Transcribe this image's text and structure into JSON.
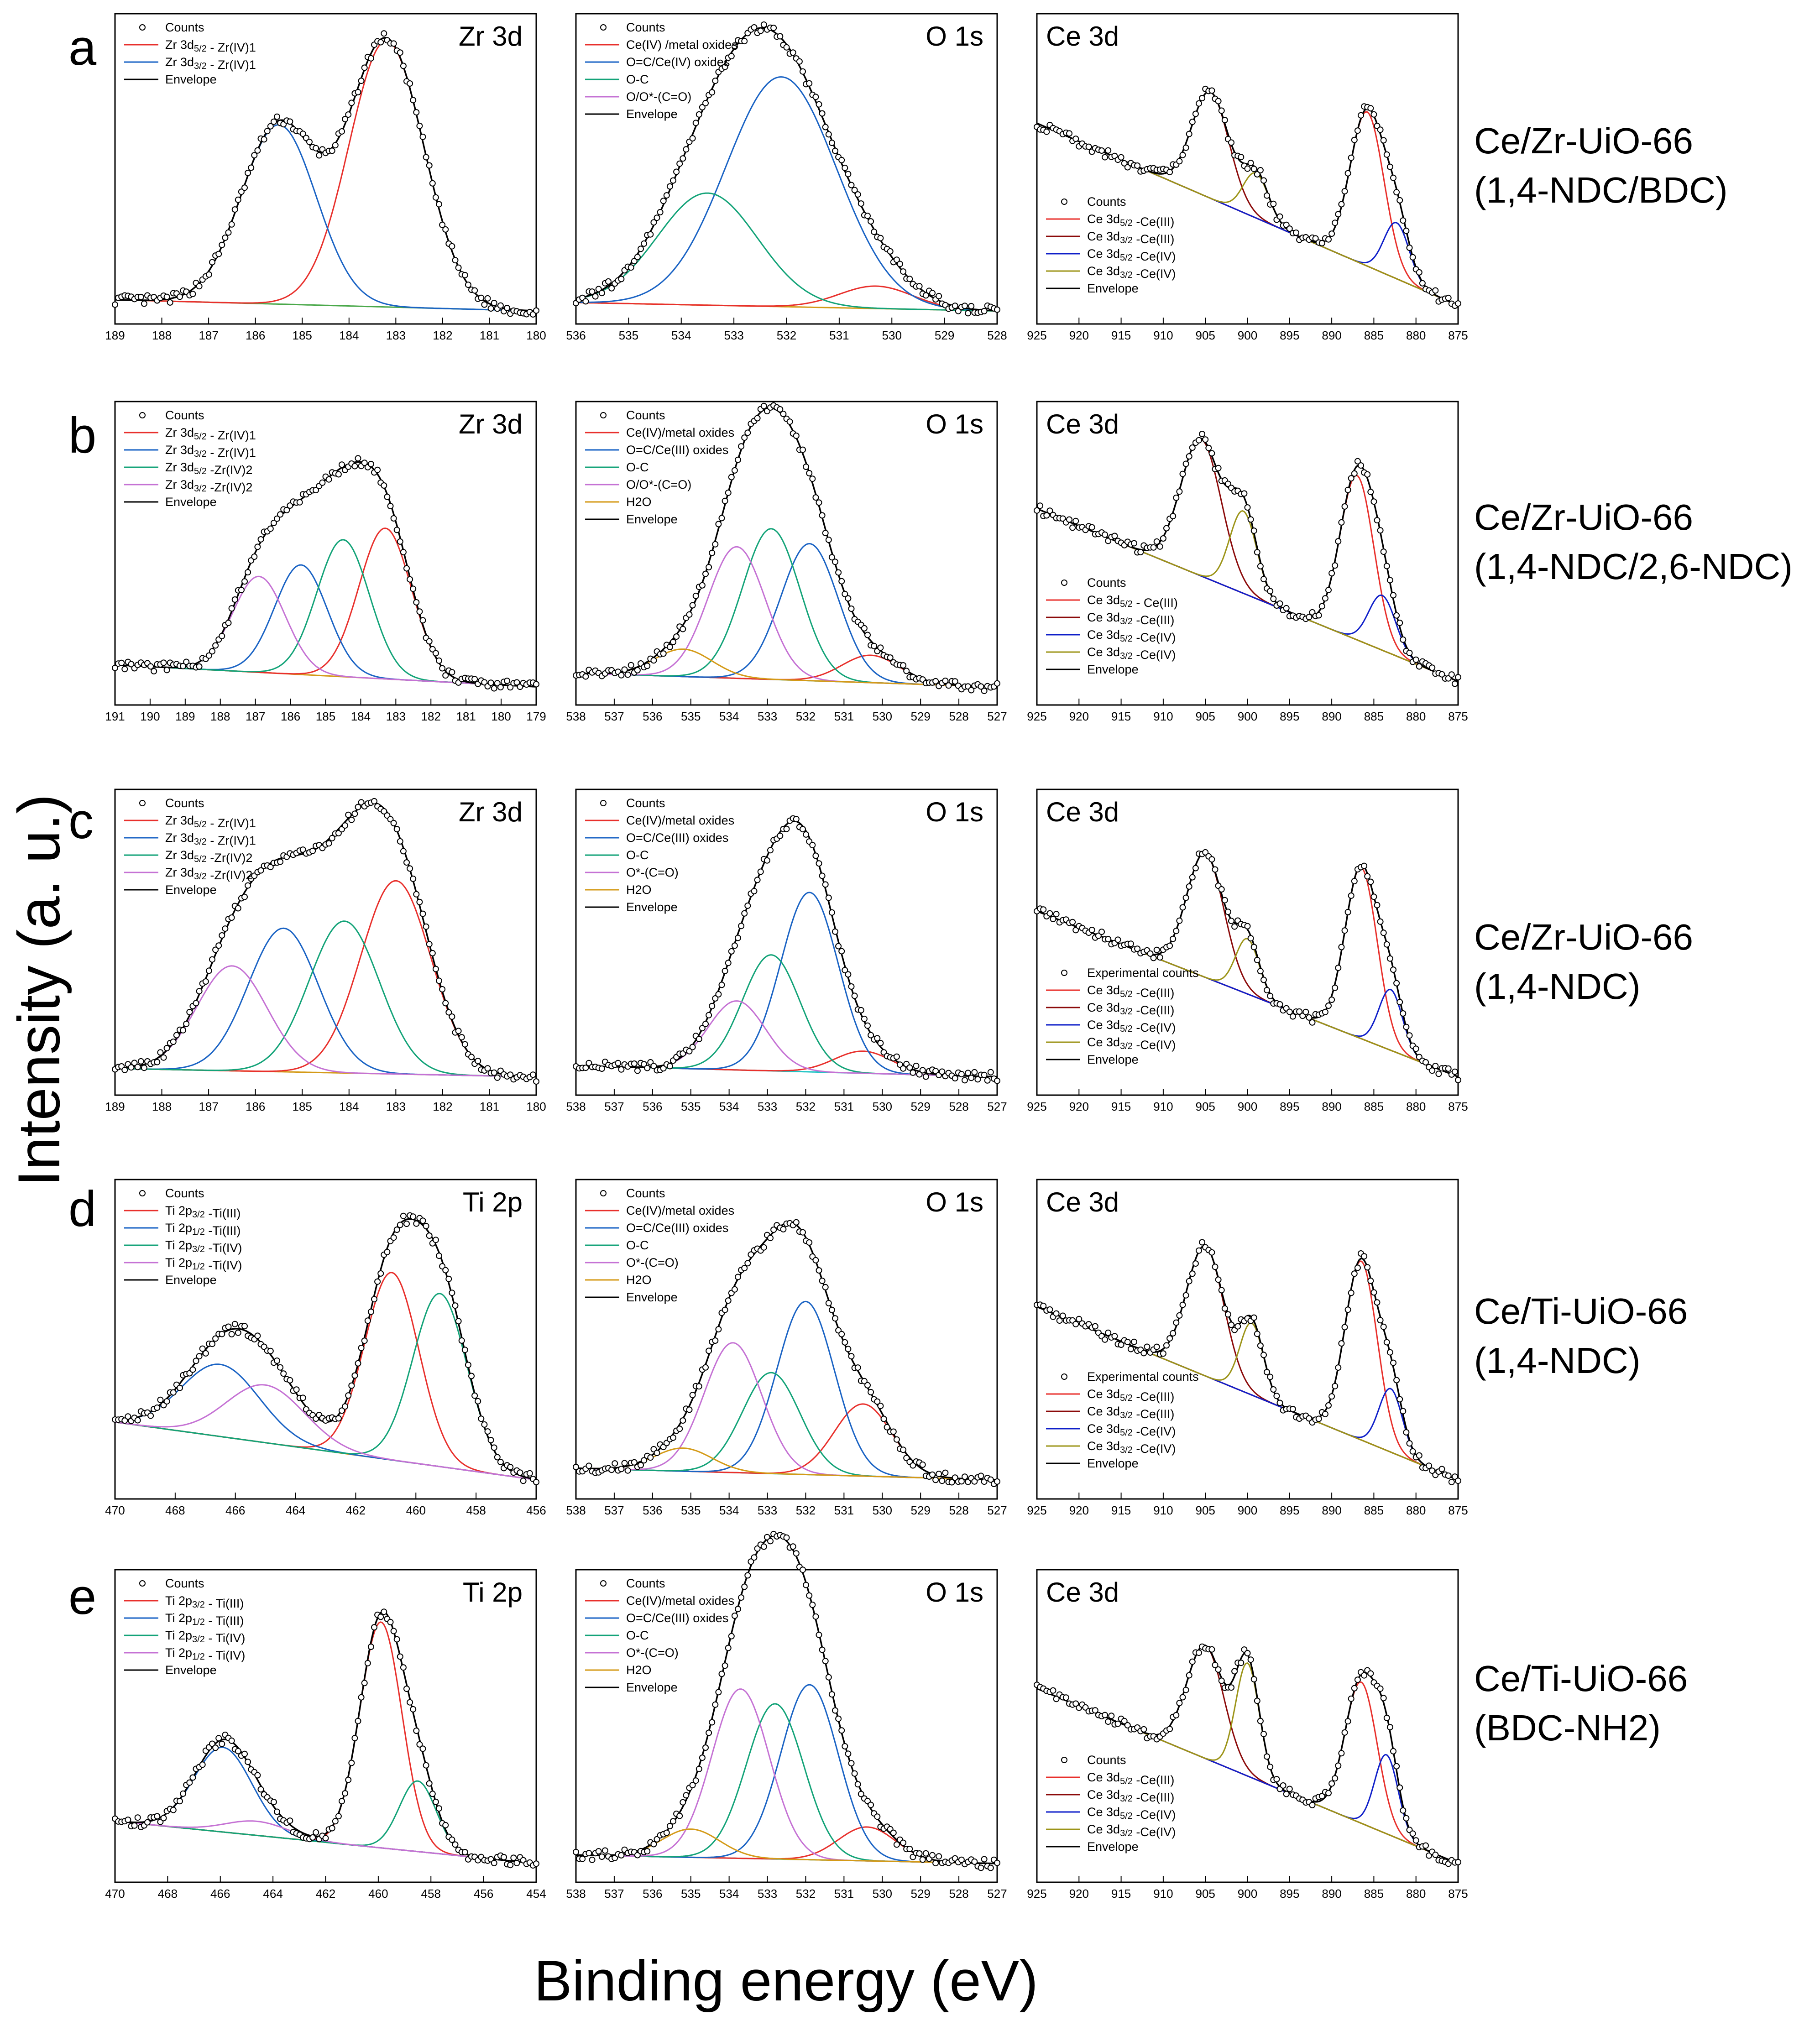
{
  "figure": {
    "y_axis_label": "Intensity (a. u.)",
    "x_axis_label": "Binding energy (eV)"
  },
  "rows": [
    {
      "letter": "a",
      "sample_line1": "Ce/Zr-UiO-66",
      "sample_line2": "(1,4-NDC/BDC)"
    },
    {
      "letter": "b",
      "sample_line1": "Ce/Zr-UiO-66",
      "sample_line2": "(1,4-NDC/2,6-NDC)"
    },
    {
      "letter": "c",
      "sample_line1": "Ce/Zr-UiO-66",
      "sample_line2": "(1,4-NDC)"
    },
    {
      "letter": "d",
      "sample_line1": "Ce/Ti-UiO-66",
      "sample_line2": "(1,4-NDC)"
    },
    {
      "letter": "e",
      "sample_line1": "Ce/Ti-UiO-66",
      "sample_line2": "(BDC-NH2)"
    }
  ],
  "colors": {
    "counts": "#000000",
    "envelope": "#000000",
    "red": "#e8302c",
    "blue": "#1a63c4",
    "green": "#13a378",
    "violet": "#c572d4",
    "orange": "#d49a17",
    "darkred": "#8b0a0a",
    "navy": "#0f1fc9",
    "olive": "#9c9418",
    "background": "#4aa84a",
    "cyan": "#1fc4c4"
  },
  "chart_data": [
    {
      "id": "a1",
      "type": "line",
      "title": "Zr 3d",
      "xlim": [
        189,
        180
      ],
      "xticks": [
        189,
        188,
        187,
        186,
        185,
        184,
        183,
        182,
        181,
        180
      ],
      "background": {
        "y_left": 0.02,
        "y_right": -0.02,
        "color": "background"
      },
      "peaks": [
        {
          "label": "Zr 3d5/2 - Zr(IV)1",
          "center": 183.2,
          "height": 0.95,
          "width": 0.8,
          "color": "red"
        },
        {
          "label": "Zr 3d3/2 - Zr(IV)1",
          "center": 185.5,
          "height": 0.64,
          "width": 0.8,
          "color": "blue"
        }
      ],
      "legend_extra": [
        "Counts",
        "Envelope"
      ]
    },
    {
      "id": "a2",
      "type": "line",
      "title": "O 1s",
      "xlim": [
        536,
        528
      ],
      "xticks": [
        536,
        535,
        534,
        533,
        532,
        531,
        530,
        529,
        528
      ],
      "background": {
        "y_left": 0.01,
        "y_right": -0.02,
        "color": "orange"
      },
      "peaks": [
        {
          "label": "Ce(IV) /metal oxides",
          "center": 530.3,
          "height": 0.08,
          "width": 0.7,
          "color": "red"
        },
        {
          "label": "O=C/Ce(IV) oxides",
          "center": 532.1,
          "height": 0.82,
          "width": 1.05,
          "color": "blue"
        },
        {
          "label": "O-C",
          "center": 533.5,
          "height": 0.4,
          "width": 0.95,
          "color": "green"
        },
        {
          "label": "O/O*-(C=O)",
          "center": 534.5,
          "height": 0.0,
          "width": 0.8,
          "color": "violet"
        }
      ],
      "legend_extra": [
        "Counts",
        "Envelope"
      ]
    },
    {
      "id": "a3",
      "type": "line",
      "title": "Ce 3d",
      "xlim": [
        925,
        875
      ],
      "xticks": [
        925,
        920,
        915,
        910,
        905,
        900,
        895,
        890,
        885,
        880,
        875
      ],
      "background": {
        "y_left": 0.65,
        "y_right": 0.0,
        "color": "red"
      },
      "peaks": [
        {
          "label": "Ce 3d5/2 -Ce(III)",
          "center": 885.8,
          "height": 0.55,
          "width": 2.0,
          "color": "red"
        },
        {
          "label": "Ce 3d3/2 -Ce(III)",
          "center": 904.4,
          "height": 0.38,
          "width": 2.2,
          "color": "darkred"
        },
        {
          "label": "Ce 3d5/2 -Ce(IV)",
          "center": 882.3,
          "height": 0.2,
          "width": 1.5,
          "color": "navy"
        },
        {
          "label": "Ce 3d3/2 -Ce(IV)",
          "center": 899.0,
          "height": 0.16,
          "width": 1.5,
          "color": "olive"
        }
      ],
      "legend_extra": [
        "Counts",
        "Envelope"
      ]
    },
    {
      "id": "b1",
      "type": "line",
      "title": "Zr 3d",
      "xlim": [
        191,
        179
      ],
      "xticks": [
        191,
        190,
        189,
        188,
        187,
        186,
        185,
        184,
        183,
        182,
        181,
        180,
        179
      ],
      "background": {
        "y_left": 0.08,
        "y_right": 0.0,
        "color": "orange"
      },
      "peaks": [
        {
          "label": "Zr 3d5/2 - Zr(IV)1",
          "center": 183.3,
          "height": 0.55,
          "width": 0.75,
          "color": "red"
        },
        {
          "label": "Zr 3d3/2 - Zr(IV)1",
          "center": 185.7,
          "height": 0.4,
          "width": 0.75,
          "color": "blue"
        },
        {
          "label": "Zr 3d5/2 -Zr(IV)2",
          "center": 184.5,
          "height": 0.5,
          "width": 0.75,
          "color": "green"
        },
        {
          "label": "Zr 3d3/2 -Zr(IV)2",
          "center": 186.9,
          "height": 0.35,
          "width": 0.75,
          "color": "violet"
        }
      ],
      "legend_extra": [
        "Counts",
        "Envelope"
      ]
    },
    {
      "id": "b2",
      "type": "line",
      "title": "O 1s",
      "xlim": [
        538,
        527
      ],
      "xticks": [
        538,
        537,
        536,
        535,
        534,
        533,
        532,
        531,
        530,
        529,
        528,
        527
      ],
      "background": {
        "y_left": 0.05,
        "y_right": 0.0,
        "color": "cyan"
      },
      "peaks": [
        {
          "label": "Ce(IV)/metal oxides",
          "center": 530.3,
          "height": 0.1,
          "width": 0.75,
          "color": "red"
        },
        {
          "label": "O=C/Ce(III) oxides",
          "center": 531.9,
          "height": 0.5,
          "width": 0.75,
          "color": "blue"
        },
        {
          "label": "O-C",
          "center": 532.9,
          "height": 0.55,
          "width": 0.75,
          "color": "green"
        },
        {
          "label": "O/O*-(C=O)",
          "center": 533.8,
          "height": 0.48,
          "width": 0.75,
          "color": "violet"
        },
        {
          "label": "H2O",
          "center": 535.2,
          "height": 0.1,
          "width": 0.75,
          "color": "orange"
        }
      ],
      "legend_extra": [
        "Counts",
        "Envelope"
      ]
    },
    {
      "id": "b3",
      "type": "line",
      "title": "Ce 3d",
      "xlim": [
        925,
        875
      ],
      "xticks": [
        925,
        920,
        915,
        910,
        905,
        900,
        895,
        890,
        885,
        880,
        875
      ],
      "background": {
        "y_left": 0.65,
        "y_right": 0.02,
        "color": "red"
      },
      "peaks": [
        {
          "label": "Ce 3d5/2 - Ce(III)",
          "center": 887.0,
          "height": 0.6,
          "width": 2.0,
          "color": "red"
        },
        {
          "label": "Ce 3d3/2 -Ce(III)",
          "center": 905.5,
          "height": 0.5,
          "width": 2.4,
          "color": "darkred"
        },
        {
          "label": "Ce 3d5/2 -Ce(IV)",
          "center": 884.0,
          "height": 0.2,
          "width": 1.6,
          "color": "navy"
        },
        {
          "label": "Ce 3d3/2 -Ce(IV)",
          "center": 900.5,
          "height": 0.3,
          "width": 1.6,
          "color": "olive"
        }
      ],
      "legend_extra": [
        "Counts",
        "Envelope"
      ]
    },
    {
      "id": "c1",
      "type": "line",
      "title": "Zr 3d",
      "xlim": [
        189,
        180
      ],
      "xticks": [
        189,
        188,
        187,
        186,
        185,
        184,
        183,
        182,
        181,
        180
      ],
      "background": {
        "y_left": 0.03,
        "y_right": 0.0,
        "color": "orange"
      },
      "peaks": [
        {
          "label": "Zr 3d5/2 - Zr(IV)1",
          "center": 183.0,
          "height": 0.7,
          "width": 0.75,
          "color": "red"
        },
        {
          "label": "Zr 3d3/2 - Zr(IV)1",
          "center": 185.4,
          "height": 0.52,
          "width": 0.75,
          "color": "blue"
        },
        {
          "label": "Zr 3d5/2 -Zr(IV)2",
          "center": 184.1,
          "height": 0.55,
          "width": 0.75,
          "color": "green"
        },
        {
          "label": "Zr 3d3/2 -Zr(IV)2",
          "center": 186.5,
          "height": 0.38,
          "width": 0.75,
          "color": "violet"
        }
      ],
      "legend_extra": [
        "Counts",
        "Envelope"
      ]
    },
    {
      "id": "c2",
      "type": "line",
      "title": "O 1s",
      "xlim": [
        538,
        527
      ],
      "xticks": [
        538,
        537,
        536,
        535,
        534,
        533,
        532,
        531,
        530,
        529,
        528,
        527
      ],
      "background": {
        "y_left": 0.04,
        "y_right": 0.0,
        "color": "cyan"
      },
      "peaks": [
        {
          "label": "Ce(IV)/metal oxides",
          "center": 530.5,
          "height": 0.08,
          "width": 0.75,
          "color": "red"
        },
        {
          "label": "O=C/Ce(III) oxides",
          "center": 531.9,
          "height": 0.65,
          "width": 0.75,
          "color": "blue"
        },
        {
          "label": "O-C",
          "center": 532.9,
          "height": 0.42,
          "width": 0.75,
          "color": "green"
        },
        {
          "label": "O*-(C=O)",
          "center": 533.8,
          "height": 0.25,
          "width": 0.75,
          "color": "violet"
        },
        {
          "label": "H2O",
          "center": 535.0,
          "height": 0.0,
          "width": 0.75,
          "color": "orange"
        }
      ],
      "legend_extra": [
        "Counts",
        "Envelope"
      ]
    },
    {
      "id": "c3",
      "type": "line",
      "title": "Ce 3d",
      "xlim": [
        925,
        875
      ],
      "xticks": [
        925,
        920,
        915,
        910,
        905,
        900,
        895,
        890,
        885,
        880,
        875
      ],
      "background": {
        "y_left": 0.6,
        "y_right": 0.0,
        "color": "red"
      },
      "peaks": [
        {
          "label": "Ce 3d5/2 -Ce(III)",
          "center": 886.5,
          "height": 0.62,
          "width": 1.9,
          "color": "red"
        },
        {
          "label": "Ce 3d3/2 -Ce(III)",
          "center": 905.0,
          "height": 0.45,
          "width": 2.2,
          "color": "darkred"
        },
        {
          "label": "Ce 3d5/2 -Ce(IV)",
          "center": 883.0,
          "height": 0.22,
          "width": 1.4,
          "color": "navy"
        },
        {
          "label": "Ce 3d3/2 -Ce(IV)",
          "center": 900.0,
          "height": 0.2,
          "width": 1.4,
          "color": "olive"
        }
      ],
      "legend_extra": [
        "Experimental counts",
        "Envelope"
      ]
    },
    {
      "id": "d1",
      "type": "line",
      "title": "Ti 2p",
      "xlim": [
        470,
        456
      ],
      "xticks": [
        470,
        468,
        466,
        464,
        462,
        460,
        458,
        456
      ],
      "background": {
        "y_left": 0.2,
        "y_right": 0.0,
        "color": "orange"
      },
      "peaks": [
        {
          "label": "Ti 2p3/2 -Ti(III)",
          "center": 460.8,
          "height": 0.65,
          "width": 0.9,
          "color": "red"
        },
        {
          "label": "Ti 2p1/2 -Ti(III)",
          "center": 466.5,
          "height": 0.25,
          "width": 1.3,
          "color": "blue"
        },
        {
          "label": "Ti 2p3/2 -Ti(IV)",
          "center": 459.2,
          "height": 0.6,
          "width": 0.9,
          "color": "green"
        },
        {
          "label": "Ti 2p1/2 -Ti(IV)",
          "center": 465.0,
          "height": 0.2,
          "width": 1.3,
          "color": "violet"
        }
      ],
      "legend_extra": [
        "Counts",
        "Envelope"
      ]
    },
    {
      "id": "d2",
      "type": "line",
      "title": "O 1s",
      "xlim": [
        538,
        527
      ],
      "xticks": [
        538,
        537,
        536,
        535,
        534,
        533,
        532,
        531,
        530,
        529,
        528,
        527
      ],
      "background": {
        "y_left": 0.04,
        "y_right": 0.0,
        "color": "cyan"
      },
      "peaks": [
        {
          "label": "Ce(IV)/metal oxides",
          "center": 530.5,
          "height": 0.25,
          "width": 0.75,
          "color": "red"
        },
        {
          "label": "O=C/Ce(III) oxides",
          "center": 532.0,
          "height": 0.6,
          "width": 0.75,
          "color": "blue"
        },
        {
          "label": "O-C",
          "center": 532.9,
          "height": 0.35,
          "width": 0.75,
          "color": "green"
        },
        {
          "label": "O*-(C=O)",
          "center": 533.9,
          "height": 0.45,
          "width": 0.75,
          "color": "violet"
        },
        {
          "label": "H2O",
          "center": 535.2,
          "height": 0.08,
          "width": 0.75,
          "color": "orange"
        }
      ],
      "legend_extra": [
        "Counts",
        "Envelope"
      ]
    },
    {
      "id": "d3",
      "type": "line",
      "title": "Ce 3d",
      "xlim": [
        925,
        875
      ],
      "xticks": [
        925,
        920,
        915,
        910,
        905,
        900,
        895,
        890,
        885,
        880,
        875
      ],
      "background": {
        "y_left": 0.6,
        "y_right": 0.0,
        "color": "red"
      },
      "peaks": [
        {
          "label": "Ce 3d5/2 -Ce(III)",
          "center": 886.5,
          "height": 0.62,
          "width": 1.9,
          "color": "red"
        },
        {
          "label": "Ce 3d3/2 -Ce(III)",
          "center": 905.0,
          "height": 0.45,
          "width": 2.2,
          "color": "darkred"
        },
        {
          "label": "Ce 3d5/2 -Ce(IV)",
          "center": 883.0,
          "height": 0.22,
          "width": 1.4,
          "color": "navy"
        },
        {
          "label": "Ce 3d3/2 -Ce(IV)",
          "center": 899.5,
          "height": 0.25,
          "width": 1.4,
          "color": "olive"
        }
      ],
      "legend_extra": [
        "Experimental counts",
        "Envelope"
      ]
    },
    {
      "id": "e1",
      "type": "line",
      "title": "Ti 2p",
      "xlim": [
        470,
        454
      ],
      "xticks": [
        470,
        468,
        466,
        464,
        462,
        460,
        458,
        456,
        454
      ],
      "background": {
        "y_left": 0.15,
        "y_right": 0.0,
        "color": "orange"
      },
      "peaks": [
        {
          "label": "Ti 2p3/2 - Ti(III)",
          "center": 459.9,
          "height": 0.8,
          "width": 0.8,
          "color": "red"
        },
        {
          "label": "Ti 2p1/2 - Ti(III)",
          "center": 465.9,
          "height": 0.3,
          "width": 1.1,
          "color": "blue"
        },
        {
          "label": "Ti 2p3/2 - Ti(IV)",
          "center": 458.5,
          "height": 0.25,
          "width": 0.7,
          "color": "green"
        },
        {
          "label": "Ti 2p1/2 - Ti(IV)",
          "center": 464.6,
          "height": 0.05,
          "width": 1.2,
          "color": "violet"
        }
      ],
      "legend_extra": [
        "Counts",
        "Envelope"
      ]
    },
    {
      "id": "e2",
      "type": "line",
      "title": "O 1s",
      "xlim": [
        538,
        527
      ],
      "xticks": [
        538,
        537,
        536,
        535,
        534,
        533,
        532,
        531,
        530,
        529,
        528,
        527
      ],
      "background": {
        "y_left": 0.03,
        "y_right": 0.0,
        "color": "cyan"
      },
      "peaks": [
        {
          "label": "Ce(IV)/metal oxides",
          "center": 530.4,
          "height": 0.12,
          "width": 0.75,
          "color": "red"
        },
        {
          "label": "O=C/Ce(III) oxides",
          "center": 531.9,
          "height": 0.62,
          "width": 0.75,
          "color": "blue"
        },
        {
          "label": "O-C",
          "center": 532.8,
          "height": 0.55,
          "width": 0.75,
          "color": "green"
        },
        {
          "label": "O*-(C=O)",
          "center": 533.7,
          "height": 0.6,
          "width": 0.75,
          "color": "violet"
        },
        {
          "label": "H2O",
          "center": 535.0,
          "height": 0.1,
          "width": 0.75,
          "color": "orange"
        }
      ],
      "legend_extra": [
        "Counts",
        "Envelope"
      ]
    },
    {
      "id": "e3",
      "type": "line",
      "title": "Ce 3d",
      "xlim": [
        925,
        875
      ],
      "xticks": [
        925,
        920,
        915,
        910,
        905,
        900,
        895,
        890,
        885,
        880,
        875
      ],
      "background": {
        "y_left": 0.62,
        "y_right": 0.0,
        "color": "red"
      },
      "peaks": [
        {
          "label": "Ce 3d5/2 -Ce(III)",
          "center": 886.5,
          "height": 0.5,
          "width": 1.9,
          "color": "red"
        },
        {
          "label": "Ce 3d3/2 -Ce(III)",
          "center": 905.0,
          "height": 0.4,
          "width": 2.2,
          "color": "darkred"
        },
        {
          "label": "Ce 3d5/2 -Ce(IV)",
          "center": 883.5,
          "height": 0.28,
          "width": 1.4,
          "color": "navy"
        },
        {
          "label": "Ce 3d3/2 -Ce(IV)",
          "center": 900.0,
          "height": 0.4,
          "width": 1.4,
          "color": "olive"
        }
      ],
      "legend_extra": [
        "Counts",
        "Envelope"
      ]
    }
  ]
}
